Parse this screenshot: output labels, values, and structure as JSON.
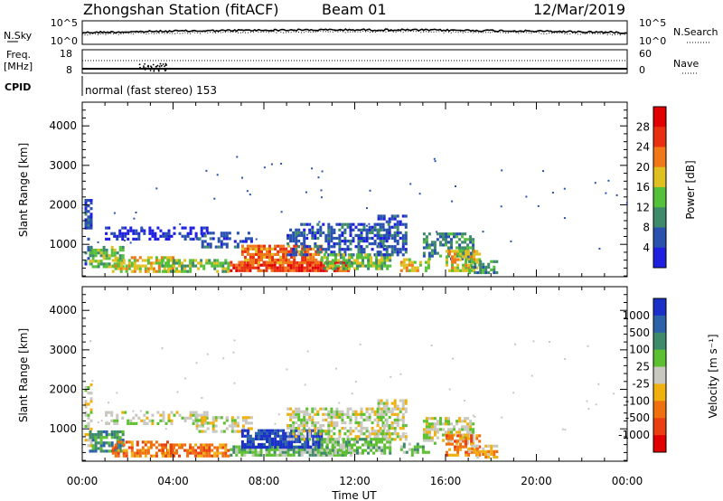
{
  "header": {
    "station": "Zhongshan Station (fitACF)",
    "beam": "Beam 01",
    "date": "12/Mar/2019"
  },
  "status_panels": {
    "nsky_label": "N.Sky",
    "nsky_ticks": [
      "10^5",
      "10^0"
    ],
    "nsearch_label": "N.Search",
    "nsearch_ticks": [
      "10^5",
      "10^0"
    ],
    "freq_label_1": "Freq.",
    "freq_label_2": "[MHz]",
    "freq_ticks": [
      "18",
      "8"
    ],
    "nave_label": "Nave",
    "nave_ticks": [
      "60",
      "0"
    ],
    "cpid_label": "CPID",
    "cpid_text": "normal (fast stereo) 153"
  },
  "chart_data": [
    {
      "type": "heatmap",
      "name": "power",
      "ylabel": "Slant Range [km]",
      "yticks": [
        "1000",
        "2000",
        "3000",
        "4000"
      ],
      "xticks": [
        "00:00",
        "04:00",
        "08:00",
        "12:00",
        "16:00",
        "20:00",
        "00:00"
      ],
      "xlabel": "Time UT",
      "colorbar_label": "Power [dB]",
      "colorbar_ticks": [
        "4",
        "8",
        "12",
        "16",
        "20",
        "24",
        "28"
      ],
      "colors": [
        "#1f1fe0",
        "#2952b0",
        "#3e8a6a",
        "#55c03a",
        "#e0c020",
        "#f07818",
        "#e83010",
        "#e00000"
      ]
    },
    {
      "type": "heatmap",
      "name": "velocity",
      "ylabel": "Slant Range [km]",
      "yticks": [
        "1000",
        "2000",
        "3000",
        "4000"
      ],
      "xticks": [
        "00:00",
        "04:00",
        "08:00",
        "12:00",
        "16:00",
        "20:00",
        "00:00"
      ],
      "xlabel": "Time UT",
      "colorbar_label": "Velocity [m s⁻¹]",
      "colorbar_ticks": [
        "1000",
        "500",
        "100",
        "25",
        "-25",
        "-100",
        "-500",
        "-1000"
      ],
      "colors": [
        "#1a30c8",
        "#2b62a8",
        "#3e8a6a",
        "#5cc030",
        "#c8c8c0",
        "#f0b010",
        "#f07010",
        "#e84010",
        "#e00000"
      ]
    }
  ]
}
